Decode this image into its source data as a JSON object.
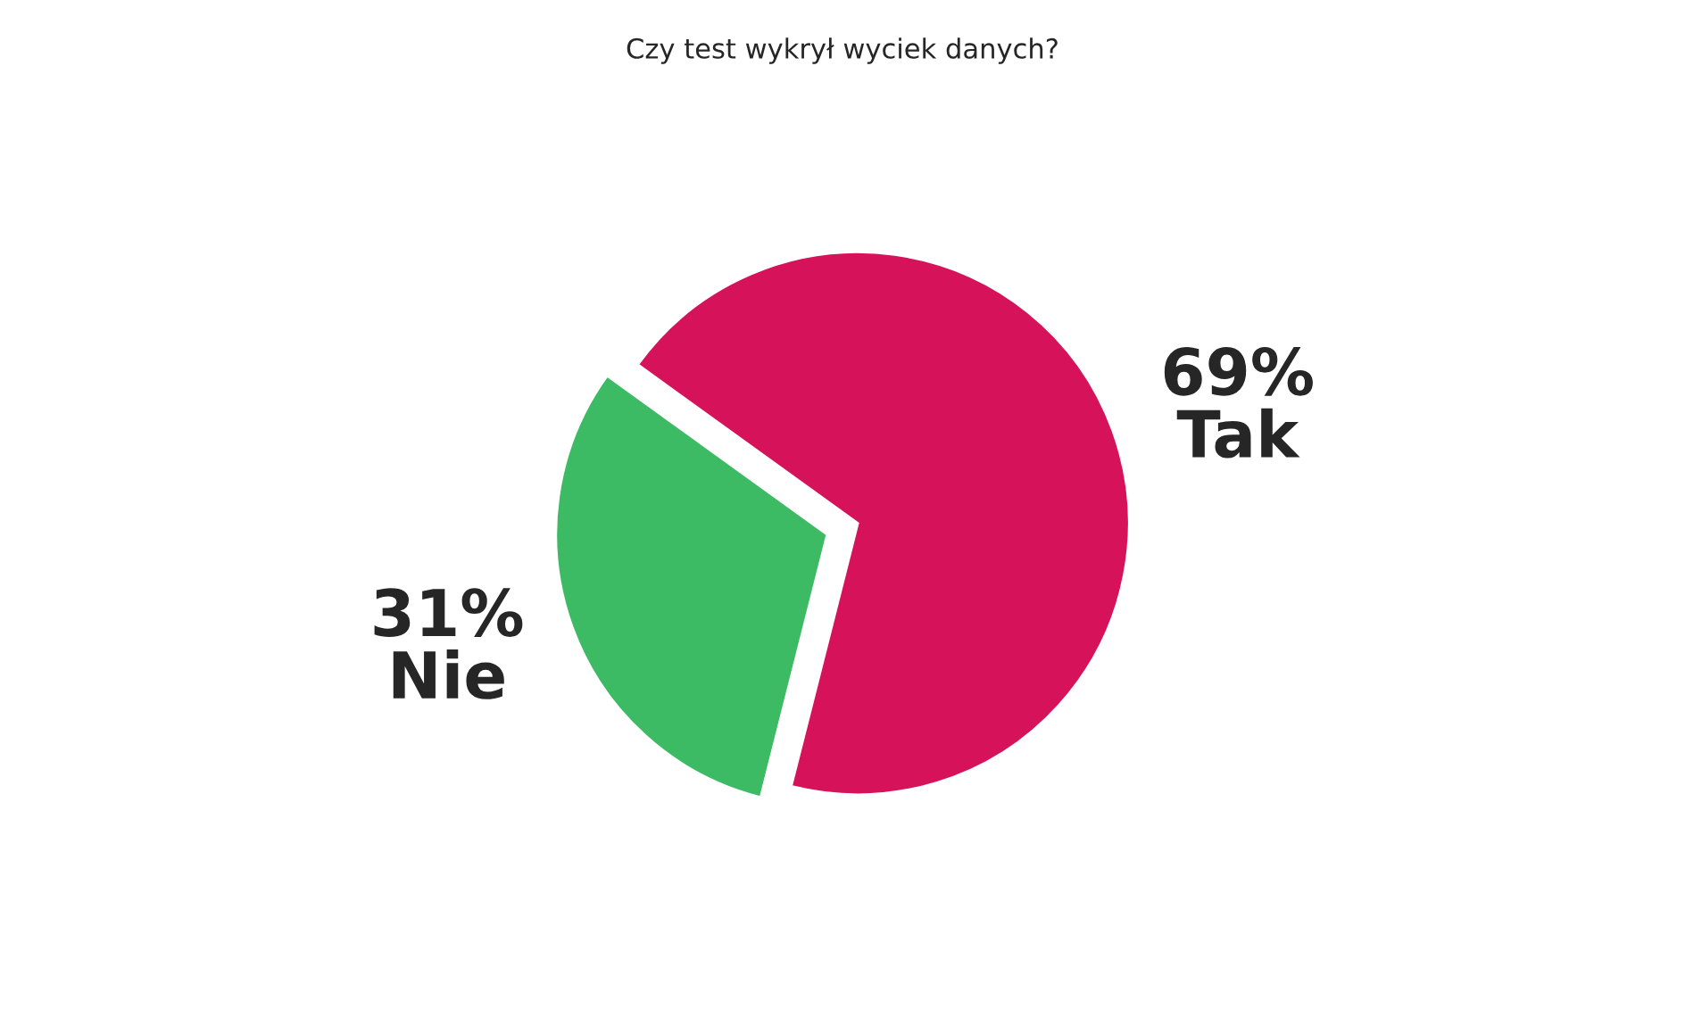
{
  "chart_data": {
    "type": "pie",
    "title": "Czy test wykrył wyciek danych?",
    "categories": [
      "Tak",
      "Nie"
    ],
    "values": [
      69,
      31
    ],
    "colors": [
      "#d6135a",
      "#3dba64"
    ],
    "value_labels": [
      "69%",
      "31%"
    ],
    "legend": false
  }
}
